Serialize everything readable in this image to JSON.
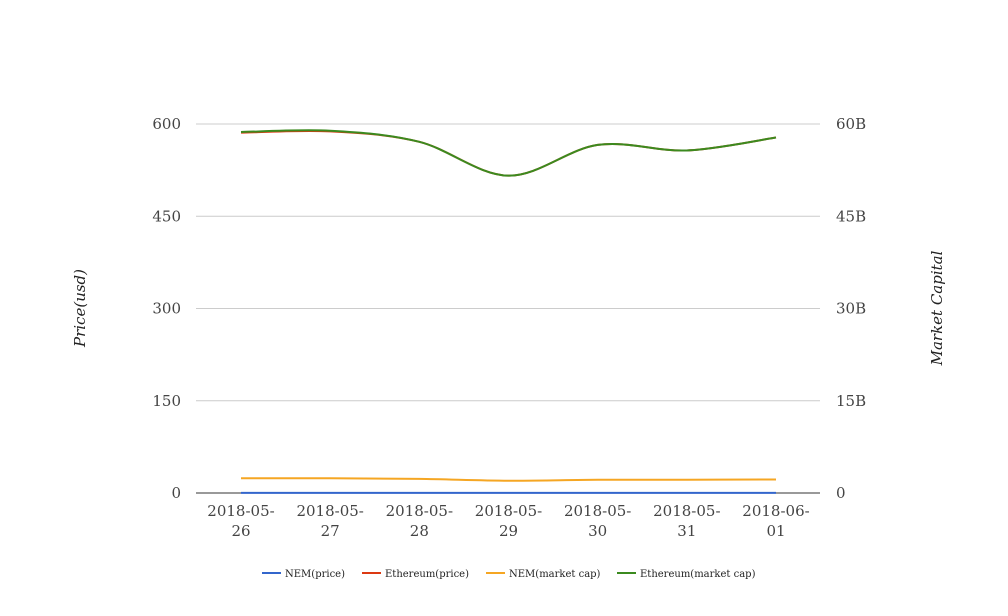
{
  "chart_data": {
    "type": "line",
    "title": "",
    "categories": [
      "2018-05-26",
      "2018-05-27",
      "2018-05-28",
      "2018-05-29",
      "2018-05-30",
      "2018-05-31",
      "2018-06-01"
    ],
    "category_lines": [
      [
        "2018-05-",
        "26"
      ],
      [
        "2018-05-",
        "27"
      ],
      [
        "2018-05-",
        "28"
      ],
      [
        "2018-05-",
        "29"
      ],
      [
        "2018-05-",
        "30"
      ],
      [
        "2018-05-",
        "31"
      ],
      [
        "2018-06-",
        "01"
      ]
    ],
    "ylabel_left": "Price(usd)",
    "ylabel_right": "Market Capital",
    "ylim_left": [
      0,
      600
    ],
    "ylim_right": [
      0,
      60000000000
    ],
    "yticks_left": [
      "0",
      "150",
      "300",
      "450",
      "600"
    ],
    "yticks_right": [
      "0",
      "15B",
      "30B",
      "45B",
      "60B"
    ],
    "grid": true,
    "legend_position": "bottom",
    "series": [
      {
        "name": "NEM(price)",
        "axis": "left",
        "color": "#3366cc",
        "values": [
          0.25,
          0.25,
          0.24,
          0.21,
          0.22,
          0.22,
          0.22
        ]
      },
      {
        "name": "Ethereum(price)",
        "axis": "left",
        "color": "#dc3912",
        "values": [
          586,
          588,
          571,
          516,
          566,
          557,
          578
        ]
      },
      {
        "name": "NEM(market cap)",
        "axis": "right",
        "color": "#f5a623",
        "values": [
          2400000000,
          2400000000,
          2300000000,
          2000000000,
          2150000000,
          2150000000,
          2200000000
        ]
      },
      {
        "name": "Ethereum(market cap)",
        "axis": "right",
        "color": "#3b8a1f",
        "values": [
          58700000000,
          58900000000,
          57100000000,
          51600000000,
          56600000000,
          55700000000,
          57800000000
        ]
      }
    ]
  }
}
